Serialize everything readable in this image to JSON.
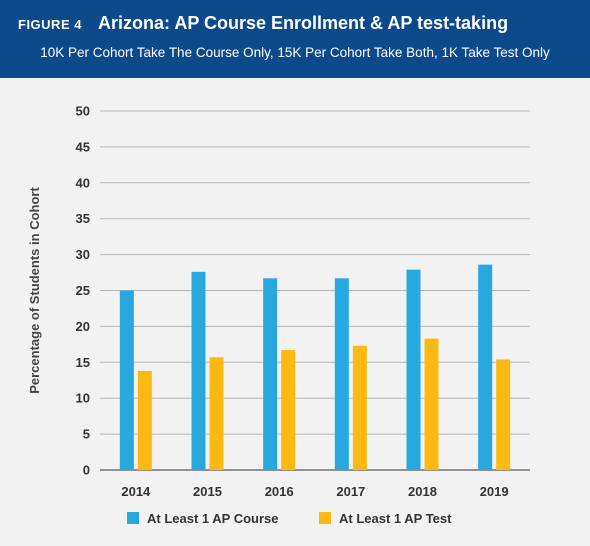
{
  "header": {
    "figure_label": "FIGURE 4",
    "title": "Arizona: AP Course Enrollment & AP test-taking",
    "subtitle": "10K Per Cohort Take The Course Only, 15K Per Cohort Take Both, 1K Take Test Only",
    "background_color": "#0d4a8b"
  },
  "chart_data": {
    "type": "bar",
    "title": "Arizona: AP Course Enrollment & AP test-taking",
    "subtitle": "10K Per Cohort Take The Course Only, 15K Per Cohort Take Both, 1K Take Test Only",
    "xlabel": "",
    "ylabel": "Percentage of Students in Cohort",
    "categories": [
      "2014",
      "2015",
      "2016",
      "2017",
      "2018",
      "2019"
    ],
    "series": [
      {
        "name": "At Least 1 AP Course",
        "color": "#29a8e0",
        "values": [
          25,
          27.6,
          26.7,
          26.7,
          27.9,
          28.6
        ]
      },
      {
        "name": "At Least 1 AP Test",
        "color": "#fdb913",
        "values": [
          13.8,
          15.7,
          16.7,
          17.3,
          18.3,
          15.4
        ]
      }
    ],
    "ylim": [
      0,
      50
    ],
    "yticks": [
      0,
      5,
      10,
      15,
      20,
      25,
      30,
      35,
      40,
      45,
      50
    ],
    "grid": true,
    "legend_position": "bottom"
  }
}
